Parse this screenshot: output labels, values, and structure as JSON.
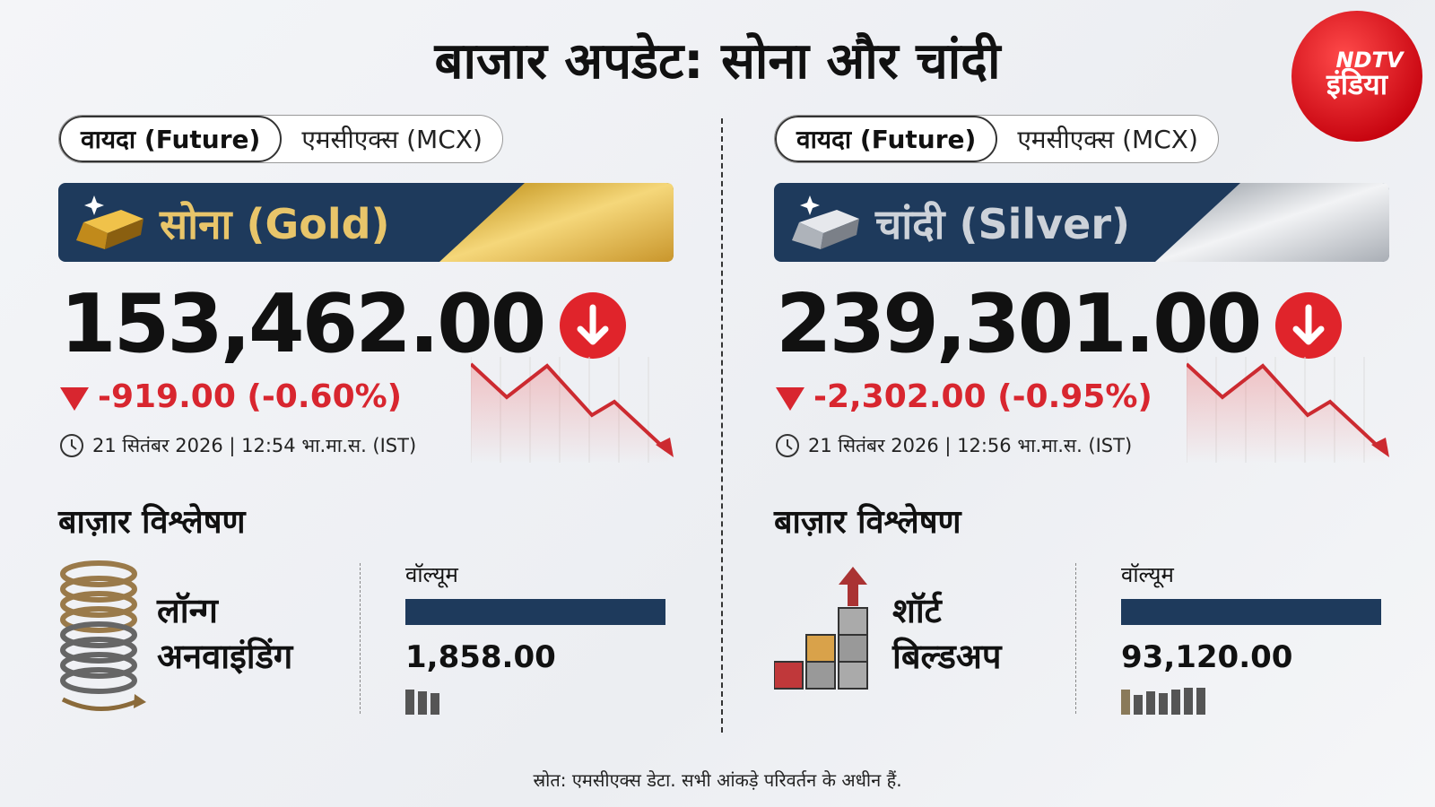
{
  "header": {
    "title": "बाजार अपडेट: सोना और चांदी",
    "logo": {
      "line1": "NDTV",
      "line2": "इंडिया"
    }
  },
  "panels": [
    {
      "tabs": [
        "वायदा (Future)",
        "एमसीएक्स (MCX)"
      ],
      "name": "सोना (Gold)",
      "price": "153,462.00",
      "change": "-919.00 (-0.60%)",
      "timestamp": "21 सितंबर 2026 | 12:54 भा.मा.स. (IST)",
      "analysis_title": "बाज़ार विश्लेषण",
      "signal": [
        "लॉन्ग",
        "अनवाइंडिंग"
      ],
      "volume_label": "वॉल्यूम",
      "volume": "1,858.00"
    },
    {
      "tabs": [
        "वायदा (Future)",
        "एमसीएक्स (MCX)"
      ],
      "name": "चांदी (Silver)",
      "price": "239,301.00",
      "change": "-2,302.00 (-0.95%)",
      "timestamp": "21 सितंबर 2026 | 12:56 भा.मा.स. (IST)",
      "analysis_title": "बाज़ार विश्लेषण",
      "signal": [
        "शॉर्ट",
        "बिल्डअप"
      ],
      "volume_label": "वॉल्यूम",
      "volume": "93,120.00"
    }
  ],
  "footer": "स्रोत: एमसीएक्स डेटा. सभी आंकड़े परिवर्तन के अधीन हैं."
}
